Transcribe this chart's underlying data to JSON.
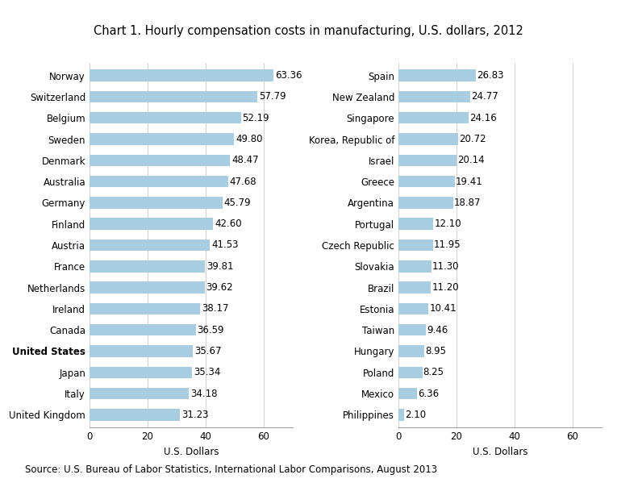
{
  "title": "Chart 1. Hourly compensation costs in manufacturing, U.S. dollars, 2012",
  "source": "Source: U.S. Bureau of Labor Statistics, International Labor Comparisons, August 2013",
  "xlabel": "U.S. Dollars",
  "bar_color": "#a8cce0",
  "left_countries": [
    "Norway",
    "Switzerland",
    "Belgium",
    "Sweden",
    "Denmark",
    "Australia",
    "Germany",
    "Finland",
    "Austria",
    "France",
    "Netherlands",
    "Ireland",
    "Canada",
    "United States",
    "Japan",
    "Italy",
    "United Kingdom"
  ],
  "left_values": [
    63.36,
    57.79,
    52.19,
    49.8,
    48.47,
    47.68,
    45.79,
    42.6,
    41.53,
    39.81,
    39.62,
    38.17,
    36.59,
    35.67,
    35.34,
    34.18,
    31.23
  ],
  "left_bold": [
    "United States"
  ],
  "right_countries": [
    "Spain",
    "New Zealand",
    "Singapore",
    "Korea, Republic of",
    "Israel",
    "Greece",
    "Argentina",
    "Portugal",
    "Czech Republic",
    "Slovakia",
    "Brazil",
    "Estonia",
    "Taiwan",
    "Hungary",
    "Poland",
    "Mexico",
    "Philippines"
  ],
  "right_values": [
    26.83,
    24.77,
    24.16,
    20.72,
    20.14,
    19.41,
    18.87,
    12.1,
    11.95,
    11.3,
    11.2,
    10.41,
    9.46,
    8.95,
    8.25,
    6.36,
    2.1
  ],
  "left_xlim": [
    0,
    70
  ],
  "right_xlim": [
    0,
    70
  ],
  "left_xticks": [
    0,
    20,
    40,
    60
  ],
  "right_xticks": [
    0,
    20,
    40,
    60
  ],
  "grid_color": "#c8c8c8",
  "title_fontsize": 10.5,
  "label_fontsize": 8.5,
  "tick_fontsize": 8.5,
  "source_fontsize": 8.5,
  "value_fontsize": 8.5,
  "bar_height": 0.55
}
